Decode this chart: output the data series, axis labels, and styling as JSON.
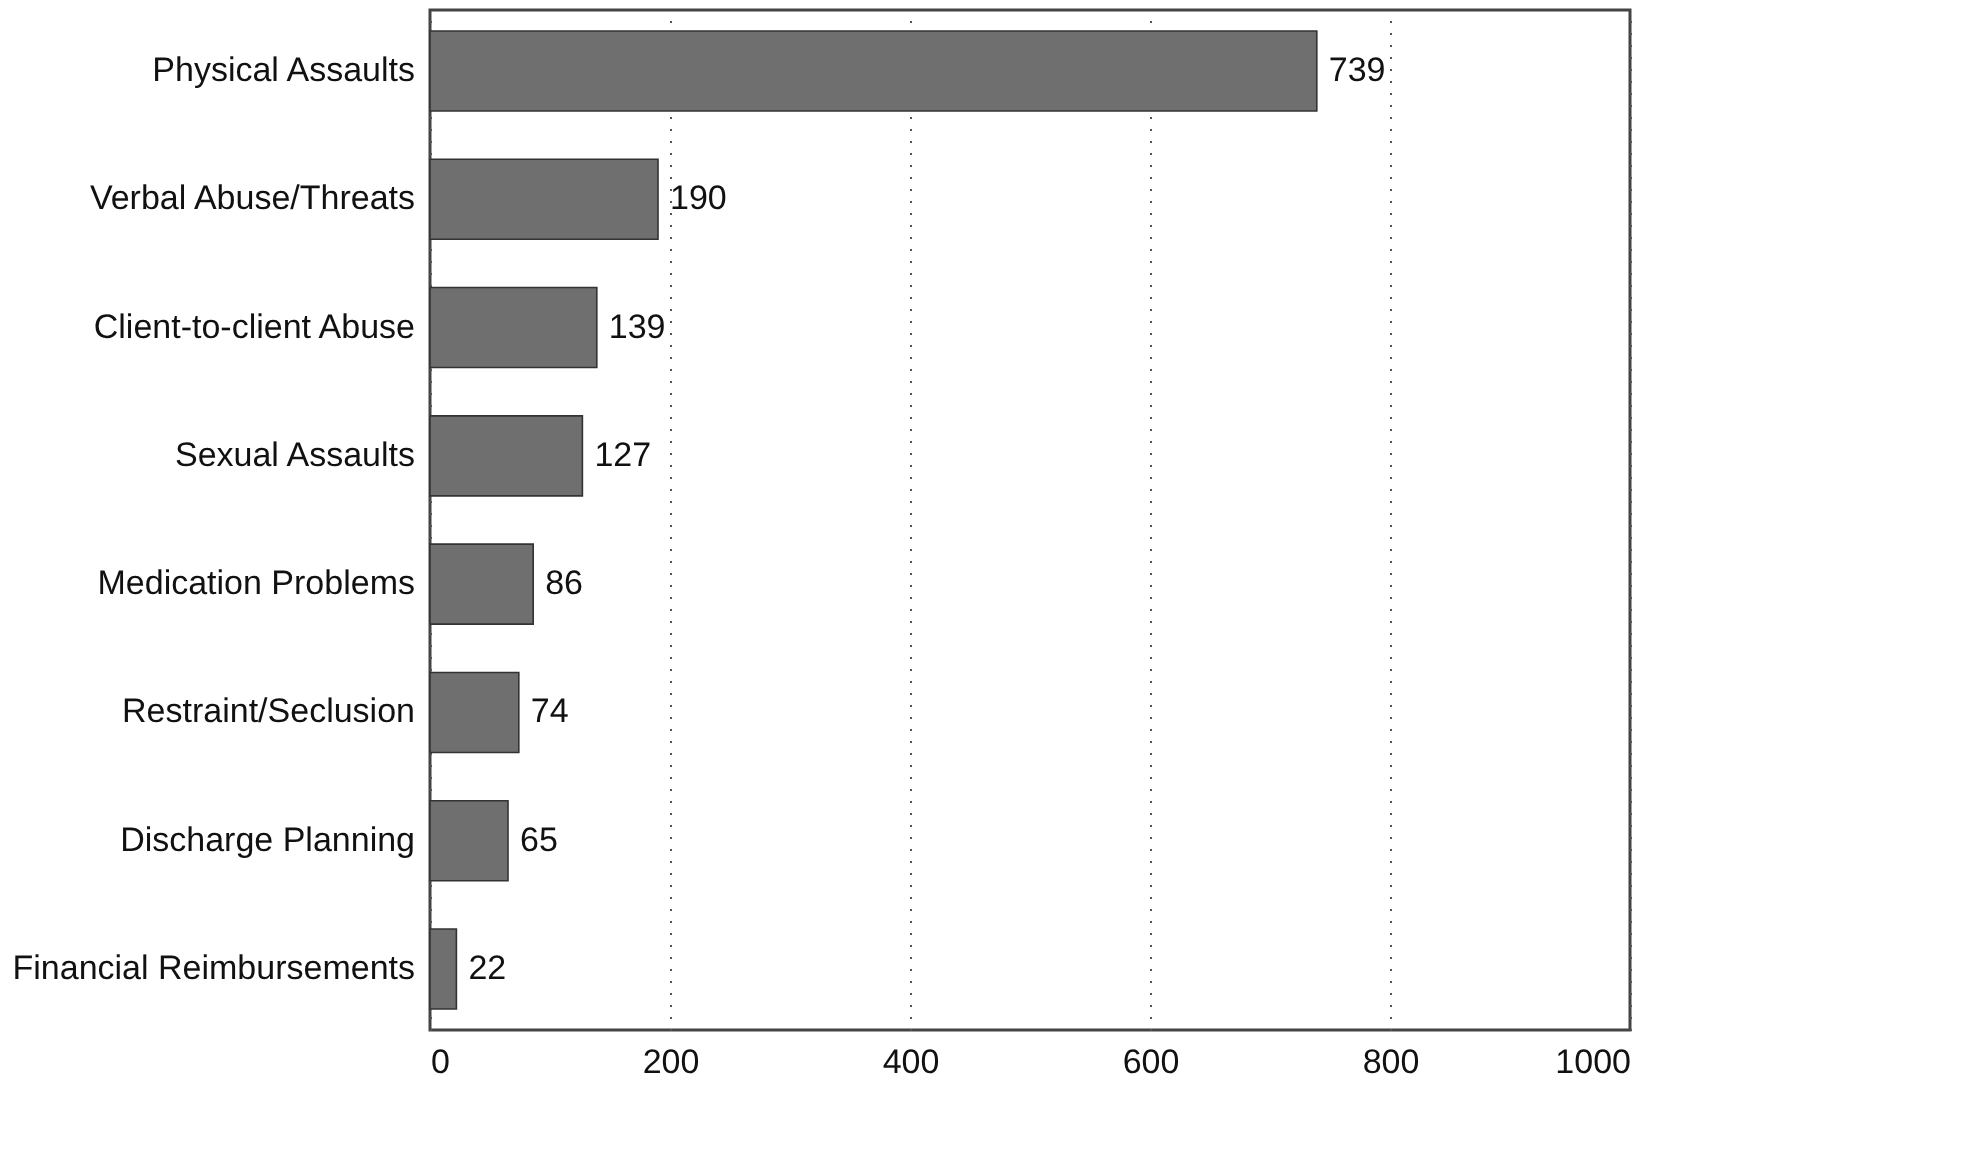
{
  "chart_data": {
    "type": "bar",
    "orientation": "horizontal",
    "categories": [
      "Physical Assaults",
      "Verbal Abuse/Threats",
      "Client-to-client Abuse",
      "Sexual Assaults",
      "Medication Problems",
      "Restraint/Seclusion",
      "Discharge Planning",
      "Financial Reimbursements"
    ],
    "values": [
      739,
      190,
      139,
      127,
      86,
      74,
      65,
      22
    ],
    "color": "#6f6f6f",
    "xlim": [
      0,
      1000
    ],
    "xticks": [
      0,
      200,
      400,
      600,
      800,
      1000
    ],
    "grid": "x",
    "line_style": "dotted",
    "data_labels": true
  }
}
